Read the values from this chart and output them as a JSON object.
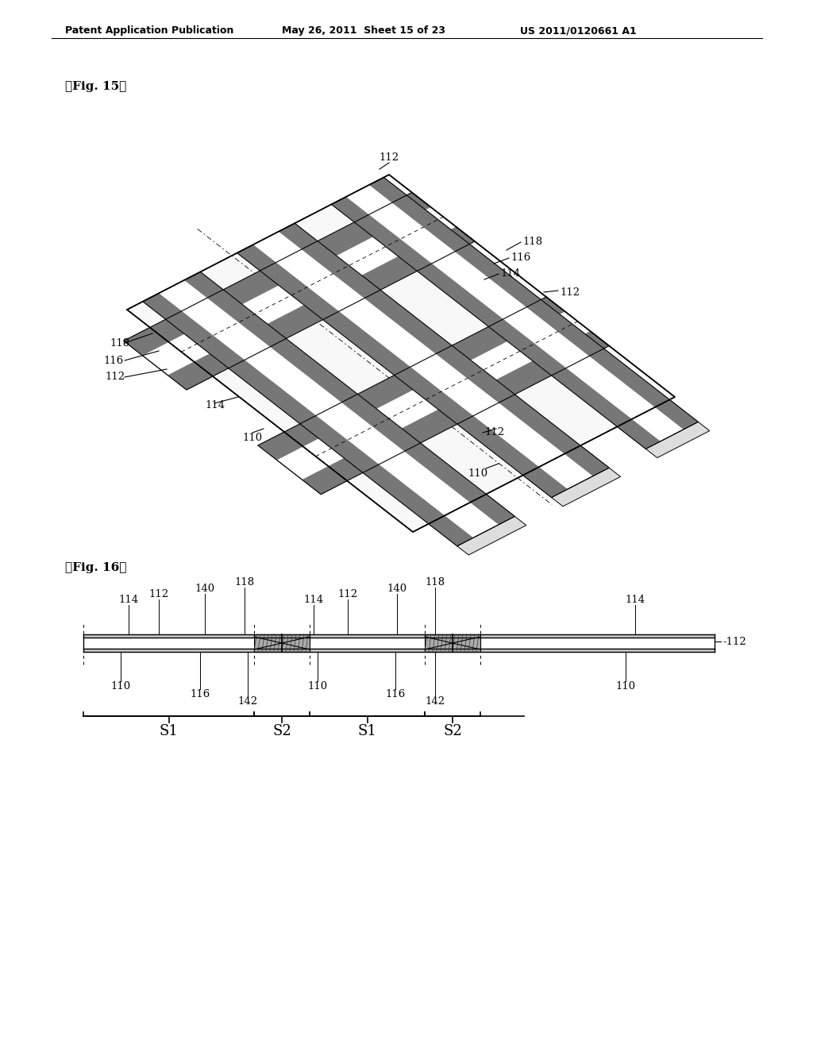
{
  "bg_color": "#ffffff",
  "header_left": "Patent Application Publication",
  "header_mid": "May 26, 2011  Sheet 15 of 23",
  "header_right": "US 2011/0120661 A1",
  "fig15_label": "『Fig. 15』",
  "fig16_label": "『Fig. 16』",
  "lc": "#000000",
  "dark_band": "#666666",
  "light_strip": "#f5f5f5",
  "tab_fill": "#dddddd"
}
